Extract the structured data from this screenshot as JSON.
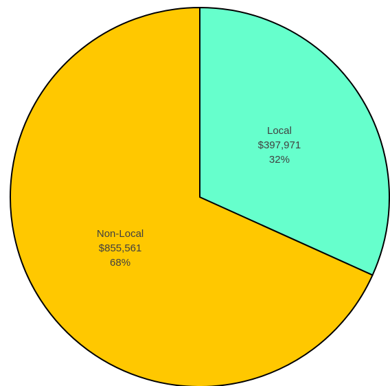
{
  "chart_data": {
    "type": "pie",
    "categories": [
      "Local",
      "Non-Local"
    ],
    "values": [
      397971,
      855561
    ],
    "value_labels": [
      "$397,971",
      "$855,561"
    ],
    "percentages": [
      32,
      68
    ],
    "percentage_labels": [
      "32%",
      "68%"
    ],
    "colors": [
      "#66ffcc",
      "#ffc800"
    ]
  }
}
